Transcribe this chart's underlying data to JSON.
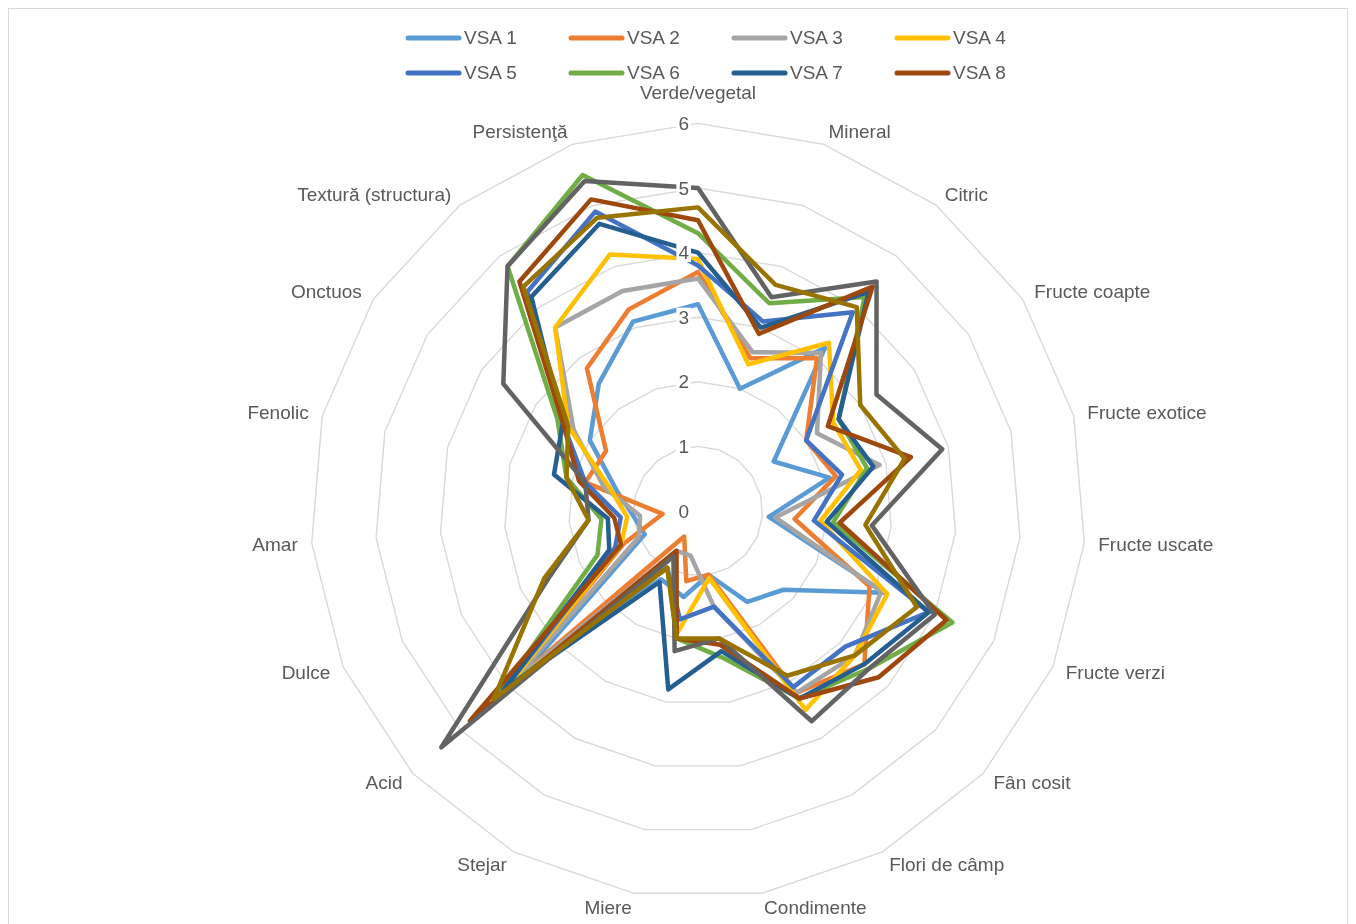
{
  "chart_data": {
    "type": "radar",
    "categories": [
      "Verde/vegetal",
      "Mineral",
      "Citric",
      "Fructe coapte",
      "Fructe exotice",
      "Fructe uscate",
      "Fructe verzi",
      "Fân cosit",
      "Flori de câmp",
      "Condimente",
      "Miere",
      "Stejar",
      "Acid",
      "Dulce",
      "Amar",
      "Fenolic",
      "Onctuos",
      "Textură (structura)",
      "Persistenţă"
    ],
    "series": [
      {
        "name": "VSA 1",
        "color": "#5b9bd5",
        "values": [
          3.2,
          2.0,
          3.2,
          1.4,
          2.1,
          1.1,
          3.15,
          1.8,
          1.6,
          1.0,
          1.35,
          1.2,
          3.5,
          0.9,
          1.0,
          1.3,
          2.0,
          2.5,
          3.1
        ]
      },
      {
        "name": "VSA 2",
        "color": "#ed7d31",
        "values": [
          3.7,
          2.5,
          3.0,
          2.0,
          2.2,
          1.5,
          2.9,
          3.5,
          3.2,
          1.0,
          1.1,
          0.45,
          4.0,
          1.25,
          0.55,
          1.8,
          1.7,
          2.8,
          3.3
        ]
      },
      {
        "name": "VSA 3",
        "color": "#a5a5a5",
        "values": [
          3.6,
          2.6,
          3.1,
          2.2,
          2.9,
          1.2,
          3.1,
          3.3,
          3.2,
          1.5,
          0.7,
          0.7,
          3.9,
          1.0,
          0.9,
          1.5,
          2.3,
          3.6,
          3.6
        ]
      },
      {
        "name": "VSA 4",
        "color": "#ffc000",
        "values": [
          3.9,
          2.4,
          3.3,
          2.5,
          2.6,
          1.9,
          3.2,
          3.3,
          3.5,
          1.05,
          1.9,
          1.0,
          4.0,
          1.3,
          1.1,
          1.4,
          2.4,
          3.6,
          4.2
        ]
      },
      {
        "name": "VSA 5",
        "color": "#4472c4",
        "values": [
          3.8,
          3.1,
          3.9,
          2.0,
          2.3,
          1.8,
          3.9,
          3.1,
          3.1,
          1.5,
          1.7,
          1.0,
          4.1,
          1.4,
          1.2,
          1.8,
          2.5,
          4.3,
          4.9
        ]
      },
      {
        "name": "VSA 6",
        "color": "#70ad47",
        "values": [
          4.3,
          3.4,
          4.2,
          2.6,
          2.7,
          2.1,
          4.3,
          3.6,
          3.3,
          2.3,
          2.0,
          1.0,
          4.2,
          1.7,
          1.5,
          2.1,
          2.6,
          4.8,
          5.5
        ]
      },
      {
        "name": "VSA 7",
        "color": "#255e91",
        "values": [
          4.0,
          3.0,
          4.3,
          2.6,
          2.8,
          2.0,
          3.9,
          3.5,
          3.3,
          2.2,
          2.8,
          1.25,
          4.1,
          1.5,
          1.4,
          2.3,
          2.5,
          4.2,
          4.7
        ]
      },
      {
        "name": "VSA 8",
        "color": "#9e480e",
        "values": [
          4.5,
          2.9,
          4.4,
          2.4,
          3.4,
          2.2,
          4.2,
          3.8,
          3.3,
          2.1,
          2.0,
          0.7,
          4.8,
          1.3,
          1.3,
          1.9,
          2.5,
          4.5,
          5.1
        ]
      },
      {
        "color": "#636363",
        "values": [
          5.0,
          3.5,
          4.5,
          3.3,
          3.9,
          2.7,
          4.0,
          3.6,
          3.7,
          2.0,
          2.2,
          0.8,
          5.4,
          2.5,
          1.7,
          1.8,
          3.6,
          4.8,
          5.4
        ]
      },
      {
        "color": "#997300",
        "values": [
          4.7,
          3.7,
          4.0,
          3.0,
          3.3,
          2.6,
          3.7,
          3.3,
          2.9,
          2.0,
          2.0,
          1.0,
          4.3,
          2.6,
          1.7,
          2.1,
          2.4,
          4.4,
          4.8
        ]
      }
    ],
    "ylim": [
      0,
      6
    ],
    "yticks": [
      0,
      1,
      2,
      3,
      4,
      5,
      6
    ],
    "grid": true,
    "legend": "top"
  }
}
